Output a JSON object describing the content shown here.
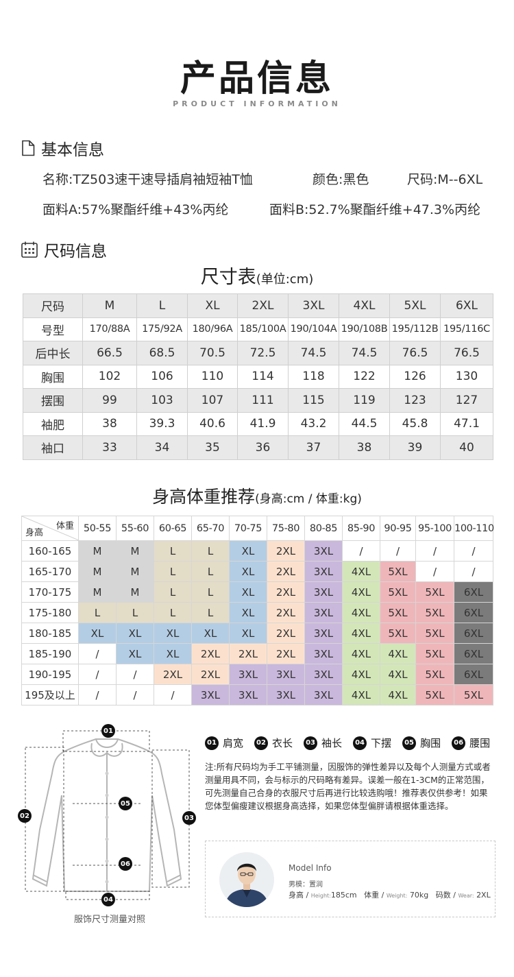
{
  "header": {
    "title": "产品信息",
    "subtitle": "PRODUCT INFORMATION"
  },
  "basic": {
    "heading": "基本信息",
    "name": "名称:TZ503速干速导插肩袖短袖T恤",
    "color": "颜色:黑色",
    "size": "尺码:M--6XL",
    "fabric_a": "面料A:57%聚酯纤维+43%丙纶",
    "fabric_b": "面料B:52.7%聚酯纤维+47.3%丙纶"
  },
  "size_section": {
    "heading": "尺码信息",
    "caption": "尺寸表",
    "caption_unit": "(单位:cm)",
    "rows": [
      [
        "尺码",
        "M",
        "L",
        "XL",
        "2XL",
        "3XL",
        "4XL",
        "5XL",
        "6XL"
      ],
      [
        "号型",
        "170/88A",
        "175/92A",
        "180/96A",
        "185/100A",
        "190/104A",
        "190/108B",
        "195/112B",
        "195/116C"
      ],
      [
        "后中长",
        "66.5",
        "68.5",
        "70.5",
        "72.5",
        "74.5",
        "74.5",
        "76.5",
        "76.5"
      ],
      [
        "胸围",
        "102",
        "106",
        "110",
        "114",
        "118",
        "122",
        "126",
        "130"
      ],
      [
        "摆围",
        "99",
        "103",
        "107",
        "111",
        "115",
        "119",
        "123",
        "127"
      ],
      [
        "袖肥",
        "38",
        "39.3",
        "40.6",
        "41.9",
        "43.2",
        "44.5",
        "45.8",
        "47.1"
      ],
      [
        "袖口",
        "33",
        "34",
        "35",
        "36",
        "37",
        "38",
        "39",
        "40"
      ]
    ]
  },
  "recommend": {
    "caption": "身高体重推荐",
    "caption_unit": "(身高:cm / 体重:kg)",
    "corner_weight": "体重",
    "corner_height": "身高",
    "weights": [
      "50-55",
      "55-60",
      "60-65",
      "65-70",
      "70-75",
      "75-80",
      "80-85",
      "85-90",
      "90-95",
      "95-100",
      "100-110"
    ],
    "rows": [
      {
        "height": "160-165",
        "cells": [
          "M",
          "M",
          "L",
          "L",
          "XL",
          "2XL",
          "3XL",
          "/",
          "/",
          "/",
          "/"
        ]
      },
      {
        "height": "165-170",
        "cells": [
          "M",
          "M",
          "L",
          "L",
          "XL",
          "2XL",
          "3XL",
          "4XL",
          "5XL",
          "/",
          "/"
        ]
      },
      {
        "height": "170-175",
        "cells": [
          "M",
          "M",
          "L",
          "L",
          "XL",
          "2XL",
          "3XL",
          "4XL",
          "5XL",
          "5XL",
          "6XL"
        ]
      },
      {
        "height": "175-180",
        "cells": [
          "L",
          "L",
          "L",
          "L",
          "XL",
          "2XL",
          "3XL",
          "4XL",
          "5XL",
          "5XL",
          "6XL"
        ]
      },
      {
        "height": "180-185",
        "cells": [
          "XL",
          "XL",
          "XL",
          "XL",
          "XL",
          "2XL",
          "3XL",
          "4XL",
          "5XL",
          "5XL",
          "6XL"
        ]
      },
      {
        "height": "185-190",
        "cells": [
          "/",
          "XL",
          "XL",
          "2XL",
          "2XL",
          "2XL",
          "3XL",
          "4XL",
          "4XL",
          "5XL",
          "6XL"
        ]
      },
      {
        "height": "190-195",
        "cells": [
          "/",
          "/",
          "2XL",
          "2XL",
          "3XL",
          "3XL",
          "3XL",
          "4XL",
          "4XL",
          "5XL",
          "6XL"
        ]
      },
      {
        "height": "195及以上",
        "cells": [
          "/",
          "/",
          "/",
          "3XL",
          "3XL",
          "3XL",
          "3XL",
          "4XL",
          "4XL",
          "5XL",
          "5XL"
        ]
      }
    ],
    "colors": {
      "M": "#d6d6d6",
      "L": "#e3dcc7",
      "XL": "#b3cde4",
      "2XL": "#fbe1cd",
      "3XL": "#c9b8dc",
      "4XL": "#d3e6b8",
      "5XL": "#efb6b9",
      "6XL": "#7b7b7b",
      "/": "#ffffff"
    }
  },
  "diagram": {
    "legend": [
      {
        "num": "01",
        "label": "肩宽"
      },
      {
        "num": "02",
        "label": "衣长"
      },
      {
        "num": "03",
        "label": "袖长"
      },
      {
        "num": "04",
        "label": "下摆"
      },
      {
        "num": "05",
        "label": "胸围"
      },
      {
        "num": "06",
        "label": "腰围"
      }
    ],
    "note": "注:所有尺码均为手工平铺测量，因服饰的弹性差异以及每个人测量方式或者测量用具不同，会与标示的尺码略有差异。误差一般在1-3CM的正常范围，可先测量自己合身的衣服尺寸后再进行比较选购哦！推荐表仅供参考！如果您体型偏瘦建议根据身高选择，如果您体型偏胖请根据体重选择。",
    "caption": "服饰尺寸测量对照",
    "markers": {
      "m01": "01",
      "m02": "02",
      "m03": "03",
      "m04": "04",
      "m05": "05",
      "m06": "06"
    }
  },
  "model": {
    "title": "Model Info",
    "name": "男模：置润",
    "height_label": "身高 /",
    "height_en": "Height:",
    "height": "185cm",
    "weight_label": "体重 /",
    "weight_en": "Weight:",
    "weight": "70kg",
    "wear_label": "码数 /",
    "wear_en": "Wear:",
    "wear": "2XL"
  }
}
